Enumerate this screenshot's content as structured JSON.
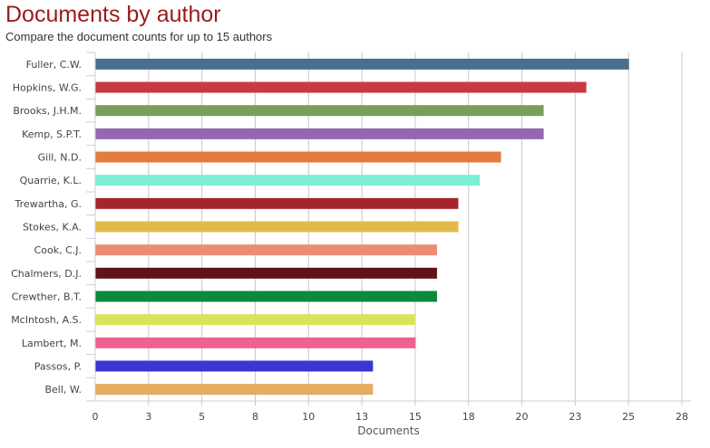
{
  "chart_data": {
    "type": "bar",
    "orientation": "horizontal",
    "title": "Documents by author",
    "subtitle": "Compare the document counts for up to 15 authors",
    "xlabel": "Documents",
    "ylabel": "",
    "xlim": [
      0,
      27.5
    ],
    "x_ticks": [
      0,
      2.5,
      5,
      7.5,
      10,
      12.5,
      15,
      17.5,
      20,
      22.5,
      25,
      27.5
    ],
    "x_tick_labels": [
      "0",
      "3",
      "5",
      "8",
      "10",
      "13",
      "15",
      "18",
      "20",
      "23",
      "25",
      "28"
    ],
    "grid": true,
    "categories": [
      "Fuller, C.W.",
      "Hopkins, W.G.",
      "Brooks, J.H.M.",
      "Kemp, S.P.T.",
      "Gill, N.D.",
      "Quarrie, K.L.",
      "Trewartha, G.",
      "Stokes, K.A.",
      "Cook, C.J.",
      "Chalmers, D.J.",
      "Crewther, B.T.",
      "McIntosh, A.S.",
      "Lambert, M.",
      "Passos, P.",
      "Bell, W."
    ],
    "values": [
      25,
      23,
      21,
      21,
      19,
      18,
      17,
      17,
      16,
      16,
      16,
      15,
      15,
      13,
      13
    ],
    "colors": [
      "#4a6e8f",
      "#c73a40",
      "#7a9e5c",
      "#9468ae",
      "#e37c3e",
      "#7deed8",
      "#a5252b",
      "#e1bb4a",
      "#eb8d75",
      "#5e1417",
      "#0a8a3c",
      "#dde25c",
      "#ec6292",
      "#3a36d2",
      "#e3ac5f"
    ]
  }
}
